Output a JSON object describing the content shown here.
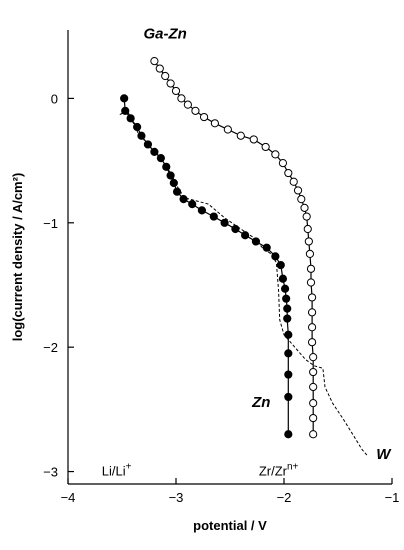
{
  "chart_data": {
    "type": "line",
    "xlabel": "potential / V",
    "ylabel": "log(current density / A/cm²)",
    "xlim": [
      -4,
      -1
    ],
    "ylim": [
      -3.1,
      0.55
    ],
    "xticks": [
      -4,
      -3,
      -2,
      -1
    ],
    "yticks": [
      0,
      -1,
      -2,
      -3
    ],
    "xtick_labels": [
      "−4",
      "−3",
      "−2",
      "−1"
    ],
    "ytick_labels": [
      "0",
      "−1",
      "−2",
      "−3"
    ],
    "grid": false,
    "legend": "none",
    "annotations": [
      {
        "text": "Li/Li",
        "sup": "+",
        "x": -3.55,
        "y": -3.03
      },
      {
        "text": "Zr/Zr",
        "sup": "n+",
        "x": -2.05,
        "y": -3.03
      }
    ],
    "series": [
      {
        "name": "Ga-Zn",
        "marker": "open-circle",
        "line": "solid",
        "label_at": {
          "x": -3.1,
          "y": 0.48
        },
        "points": [
          [
            -3.2,
            0.3
          ],
          [
            -3.15,
            0.24
          ],
          [
            -3.1,
            0.18
          ],
          [
            -3.05,
            0.12
          ],
          [
            -3.0,
            0.06
          ],
          [
            -2.95,
            0.0
          ],
          [
            -2.89,
            -0.05
          ],
          [
            -2.82,
            -0.1
          ],
          [
            -2.74,
            -0.15
          ],
          [
            -2.64,
            -0.2
          ],
          [
            -2.52,
            -0.25
          ],
          [
            -2.4,
            -0.3
          ],
          [
            -2.28,
            -0.33
          ],
          [
            -2.17,
            -0.39
          ],
          [
            -2.08,
            -0.45
          ],
          [
            -2.01,
            -0.52
          ],
          [
            -1.96,
            -0.6
          ],
          [
            -1.91,
            -0.67
          ],
          [
            -1.87,
            -0.74
          ],
          [
            -1.84,
            -0.81
          ],
          [
            -1.81,
            -0.88
          ],
          [
            -1.79,
            -0.95
          ],
          [
            -1.78,
            -1.05
          ],
          [
            -1.77,
            -1.15
          ],
          [
            -1.76,
            -1.25
          ],
          [
            -1.75,
            -1.37
          ],
          [
            -1.75,
            -1.48
          ],
          [
            -1.74,
            -1.6
          ],
          [
            -1.74,
            -1.72
          ],
          [
            -1.74,
            -1.84
          ],
          [
            -1.74,
            -1.96
          ],
          [
            -1.73,
            -2.08
          ],
          [
            -1.73,
            -2.2
          ],
          [
            -1.73,
            -2.32
          ],
          [
            -1.73,
            -2.45
          ],
          [
            -1.73,
            -2.57
          ],
          [
            -1.73,
            -2.7
          ]
        ]
      },
      {
        "name": "Zn",
        "marker": "filled-circle",
        "line": "solid",
        "label_at": {
          "x": -2.21,
          "y": -2.48
        },
        "points": [
          [
            -3.48,
            0.0
          ],
          [
            -3.47,
            -0.1
          ],
          [
            -3.42,
            -0.16
          ],
          [
            -3.36,
            -0.23
          ],
          [
            -3.32,
            -0.3
          ],
          [
            -3.26,
            -0.37
          ],
          [
            -3.2,
            -0.43
          ],
          [
            -3.14,
            -0.48
          ],
          [
            -3.09,
            -0.55
          ],
          [
            -3.05,
            -0.62
          ],
          [
            -3.02,
            -0.68
          ],
          [
            -2.99,
            -0.75
          ],
          [
            -2.93,
            -0.81
          ],
          [
            -2.85,
            -0.85
          ],
          [
            -2.76,
            -0.9
          ],
          [
            -2.65,
            -0.95
          ],
          [
            -2.55,
            -1.0
          ],
          [
            -2.45,
            -1.05
          ],
          [
            -2.36,
            -1.1
          ],
          [
            -2.26,
            -1.15
          ],
          [
            -2.16,
            -1.2
          ],
          [
            -2.08,
            -1.27
          ],
          [
            -2.03,
            -1.34
          ],
          [
            -2.01,
            -1.45
          ],
          [
            -1.99,
            -1.53
          ],
          [
            -1.98,
            -1.61
          ],
          [
            -1.97,
            -1.69
          ],
          [
            -1.97,
            -1.77
          ],
          [
            -1.96,
            -1.9
          ],
          [
            -1.96,
            -2.05
          ],
          [
            -1.96,
            -2.22
          ],
          [
            -1.96,
            -2.4
          ],
          [
            -1.96,
            -2.7
          ]
        ]
      },
      {
        "name": "W",
        "marker": "none",
        "line": "dotted",
        "label_at": {
          "x": -1.08,
          "y": -2.9
        },
        "points": [
          [
            -3.52,
            -0.13
          ],
          [
            -3.45,
            -0.1
          ],
          [
            -3.35,
            -0.28
          ],
          [
            -3.26,
            -0.37
          ],
          [
            -3.15,
            -0.47
          ],
          [
            -3.05,
            -0.6
          ],
          [
            -2.98,
            -0.72
          ],
          [
            -2.92,
            -0.8
          ],
          [
            -2.83,
            -0.82
          ],
          [
            -2.7,
            -0.85
          ],
          [
            -2.55,
            -0.96
          ],
          [
            -2.4,
            -1.05
          ],
          [
            -2.28,
            -1.12
          ],
          [
            -2.2,
            -1.2
          ],
          [
            -2.12,
            -1.25
          ],
          [
            -2.07,
            -1.32
          ],
          [
            -2.05,
            -1.55
          ],
          [
            -2.04,
            -1.78
          ],
          [
            -2.0,
            -1.9
          ],
          [
            -1.9,
            -2.0
          ],
          [
            -1.8,
            -2.1
          ],
          [
            -1.72,
            -2.15
          ],
          [
            -1.64,
            -2.17
          ],
          [
            -1.62,
            -2.32
          ],
          [
            -1.55,
            -2.45
          ],
          [
            -1.45,
            -2.58
          ],
          [
            -1.35,
            -2.72
          ],
          [
            -1.28,
            -2.82
          ],
          [
            -1.22,
            -2.88
          ]
        ]
      }
    ]
  }
}
